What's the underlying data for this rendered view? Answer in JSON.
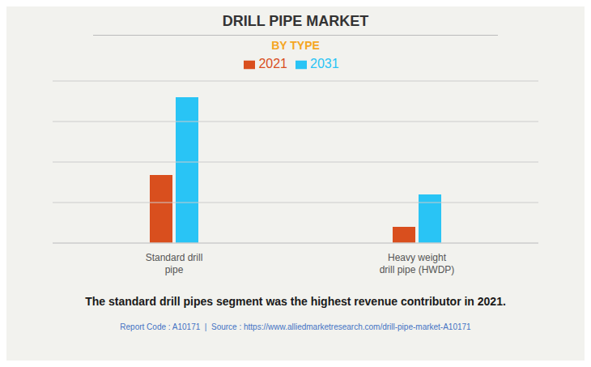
{
  "chart_data": {
    "type": "bar",
    "title": "DRILL PIPE MARKET",
    "subtitle": "BY TYPE",
    "categories": [
      "Standard drill\npipe",
      "Heavy weight\ndrill pipe (HWDP)"
    ],
    "series": [
      {
        "name": "2021",
        "color": "#D94F1E",
        "values": [
          42,
          10
        ]
      },
      {
        "name": "2031",
        "color": "#29C4F5",
        "values": [
          90,
          30
        ]
      }
    ],
    "ylim": [
      0,
      100
    ],
    "yticks": [
      0,
      25,
      50,
      75,
      100
    ],
    "grid": true,
    "tick_labels": "x",
    "legend": "top",
    "footer": "The standard drill pipes segment was the highest revenue contributor in 2021.",
    "source": "Report Code : A10171  |  Source : https://www.alliedmarketresearch.com/drill-pipe-market-A10171"
  }
}
